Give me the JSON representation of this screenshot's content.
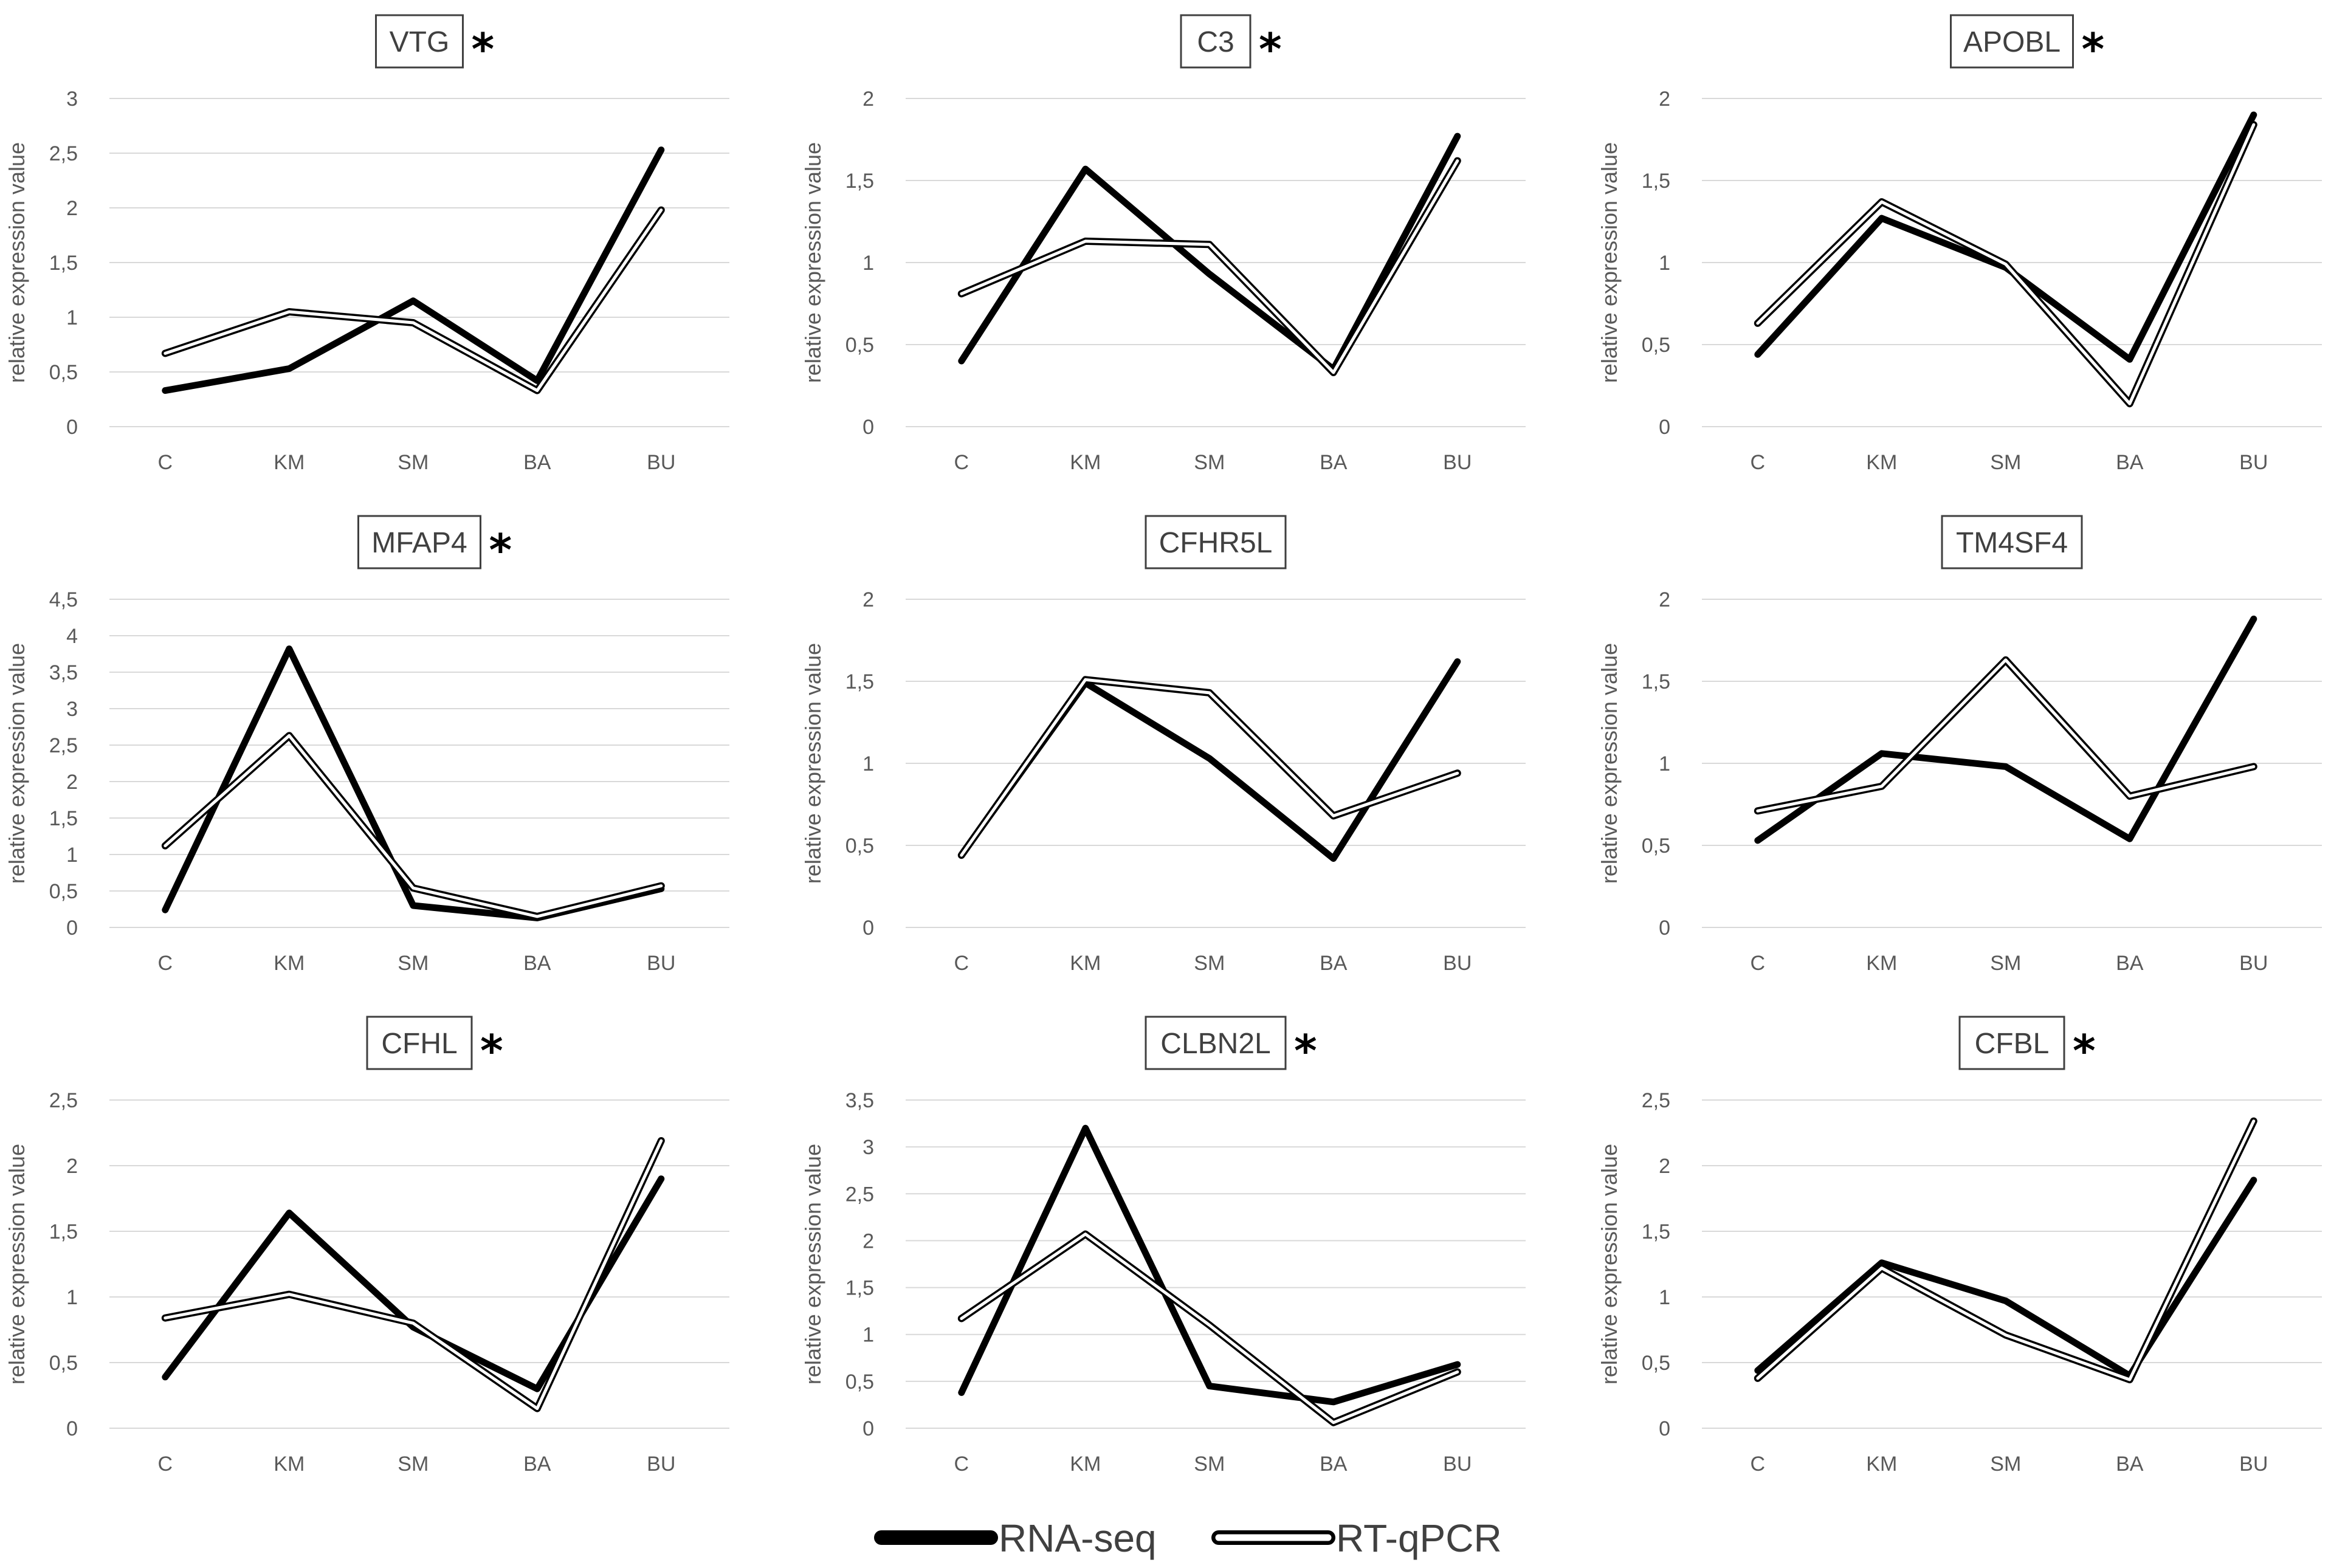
{
  "chart_data": [
    {
      "type": "line",
      "title": "VTG",
      "significant": "*",
      "ylabel": "relative expression value",
      "categories": [
        "C",
        "KM",
        "SM",
        "BA",
        "BU"
      ],
      "yticks": [
        "0",
        "0,5",
        "1",
        "1,5",
        "2",
        "2,5",
        "3"
      ],
      "ylim": [
        0,
        3
      ],
      "grid": true,
      "series": [
        {
          "name": "RNA-seq",
          "values": [
            0.33,
            0.53,
            1.15,
            0.42,
            2.53
          ]
        },
        {
          "name": "RT-qPCR",
          "values": [
            0.67,
            1.05,
            0.95,
            0.33,
            1.98
          ]
        }
      ]
    },
    {
      "type": "line",
      "title": "C3",
      "significant": "*",
      "ylabel": "relative expression value",
      "categories": [
        "C",
        "KM",
        "SM",
        "BA",
        "BU"
      ],
      "yticks": [
        "0",
        "0,5",
        "1",
        "1,5",
        "2"
      ],
      "ylim": [
        0,
        2
      ],
      "grid": true,
      "series": [
        {
          "name": "RNA-seq",
          "values": [
            0.4,
            1.57,
            0.93,
            0.35,
            1.77
          ]
        },
        {
          "name": "RT-qPCR",
          "values": [
            0.81,
            1.13,
            1.11,
            0.33,
            1.62
          ]
        }
      ]
    },
    {
      "type": "line",
      "title": "APOBL",
      "significant": "*",
      "ylabel": "relative expression value",
      "categories": [
        "C",
        "KM",
        "SM",
        "BA",
        "BU"
      ],
      "yticks": [
        "0",
        "0,5",
        "1",
        "1,5",
        "2"
      ],
      "ylim": [
        0,
        2
      ],
      "grid": true,
      "series": [
        {
          "name": "RNA-seq",
          "values": [
            0.44,
            1.27,
            0.97,
            0.41,
            1.9
          ]
        },
        {
          "name": "RT-qPCR",
          "values": [
            0.63,
            1.37,
            0.99,
            0.14,
            1.84
          ]
        }
      ]
    },
    {
      "type": "line",
      "title": "MFAP4",
      "significant": "*",
      "ylabel": "relative expression value",
      "categories": [
        "C",
        "KM",
        "SM",
        "BA",
        "BU"
      ],
      "yticks": [
        "0",
        "0,5",
        "1",
        "1,5",
        "2",
        "2,5",
        "3",
        "3,5",
        "4",
        "4,5"
      ],
      "ylim": [
        0,
        4.5
      ],
      "grid": true,
      "series": [
        {
          "name": "RNA-seq",
          "values": [
            0.24,
            3.82,
            0.3,
            0.13,
            0.53
          ]
        },
        {
          "name": "RT-qPCR",
          "values": [
            1.12,
            2.63,
            0.54,
            0.15,
            0.57
          ]
        }
      ]
    },
    {
      "type": "line",
      "title": "CFHR5L",
      "significant": "",
      "ylabel": "relative expression value",
      "categories": [
        "C",
        "KM",
        "SM",
        "BA",
        "BU"
      ],
      "yticks": [
        "0",
        "0,5",
        "1",
        "1,5",
        "2"
      ],
      "ylim": [
        0,
        2
      ],
      "grid": true,
      "series": [
        {
          "name": "RNA-seq",
          "values": [
            0.44,
            1.49,
            1.03,
            0.42,
            1.62
          ]
        },
        {
          "name": "RT-qPCR",
          "values": [
            0.44,
            1.51,
            1.43,
            0.68,
            0.94
          ]
        }
      ]
    },
    {
      "type": "line",
      "title": "TM4SF4",
      "significant": "",
      "ylabel": "relative expression value",
      "categories": [
        "C",
        "KM",
        "SM",
        "BA",
        "BU"
      ],
      "yticks": [
        "0",
        "0,5",
        "1",
        "1,5",
        "2"
      ],
      "ylim": [
        0,
        2
      ],
      "grid": true,
      "series": [
        {
          "name": "RNA-seq",
          "values": [
            0.53,
            1.06,
            0.98,
            0.54,
            1.88
          ]
        },
        {
          "name": "RT-qPCR",
          "values": [
            0.71,
            0.86,
            1.63,
            0.8,
            0.98
          ]
        }
      ]
    },
    {
      "type": "line",
      "title": "CFHL",
      "significant": "*",
      "ylabel": "relative expression value",
      "categories": [
        "C",
        "KM",
        "SM",
        "BA",
        "BU"
      ],
      "yticks": [
        "0",
        "0,5",
        "1",
        "1,5",
        "2",
        "2,5"
      ],
      "ylim": [
        0,
        2.5
      ],
      "grid": true,
      "series": [
        {
          "name": "RNA-seq",
          "values": [
            0.39,
            1.64,
            0.77,
            0.3,
            1.9
          ]
        },
        {
          "name": "RT-qPCR",
          "values": [
            0.84,
            1.02,
            0.8,
            0.15,
            2.19
          ]
        }
      ]
    },
    {
      "type": "line",
      "title": "CLBN2L",
      "significant": "*",
      "ylabel": "relative expression value",
      "categories": [
        "C",
        "KM",
        "SM",
        "BA",
        "BU"
      ],
      "yticks": [
        "0",
        "0,5",
        "1",
        "1,5",
        "2",
        "2,5",
        "3",
        "3,5"
      ],
      "ylim": [
        0,
        3.5
      ],
      "grid": true,
      "series": [
        {
          "name": "RNA-seq",
          "values": [
            0.38,
            3.2,
            0.45,
            0.28,
            0.68
          ]
        },
        {
          "name": "RT-qPCR",
          "values": [
            1.17,
            2.07,
            1.1,
            0.06,
            0.6
          ]
        }
      ]
    },
    {
      "type": "line",
      "title": "CFBL",
      "significant": "*",
      "ylabel": "relative expression value",
      "categories": [
        "C",
        "KM",
        "SM",
        "BA",
        "BU"
      ],
      "yticks": [
        "0",
        "0,5",
        "1",
        "1,5",
        "2",
        "2,5"
      ],
      "ylim": [
        0,
        2.5
      ],
      "grid": true,
      "series": [
        {
          "name": "RNA-seq",
          "values": [
            0.44,
            1.26,
            0.97,
            0.4,
            1.89
          ]
        },
        {
          "name": "RT-qPCR",
          "values": [
            0.38,
            1.22,
            0.71,
            0.37,
            2.34
          ]
        }
      ]
    }
  ],
  "legend": {
    "placement": "bottom-center",
    "items": [
      {
        "label": "RNA-seq",
        "style": "solid-thick",
        "color": "#000000"
      },
      {
        "label": "RT-qPCR",
        "style": "double-outline",
        "color": "#000000"
      }
    ]
  },
  "colors": {
    "line": "#000000",
    "grid": "#d9d9d9",
    "text": "#595959"
  }
}
